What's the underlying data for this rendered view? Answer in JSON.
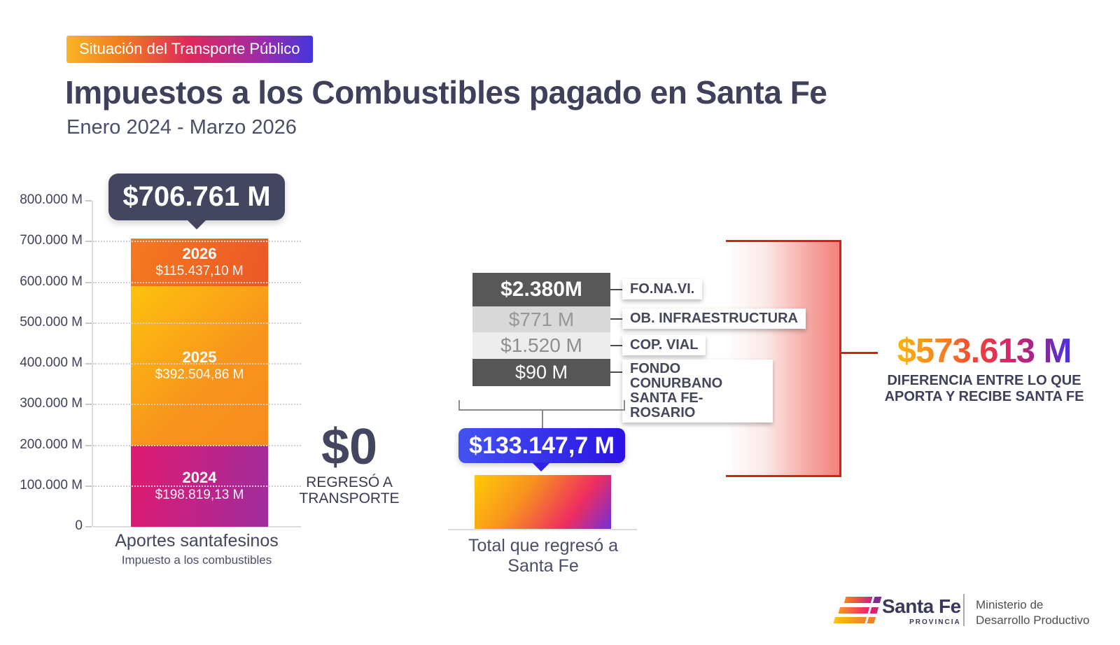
{
  "header": {
    "badge": "Situación del Transporte Público",
    "title": "Impuestos a los Combustibles pagado en Santa Fe",
    "subtitle": "Enero 2024 - Marzo 2026"
  },
  "chart_data": [
    {
      "type": "bar",
      "stacked": true,
      "title": "Aportes santafesinos",
      "subtitle": "Impuesto a los combustibles",
      "total_label": "$706.761 M",
      "total_value": 706761,
      "ylim": [
        0,
        800000
      ],
      "grid": "dotted horizontal",
      "yticks": [
        {
          "label": "800.000 M",
          "value": 800000
        },
        {
          "label": "700.000 M",
          "value": 700000
        },
        {
          "label": "600.000 M",
          "value": 600000
        },
        {
          "label": "500.000 M",
          "value": 500000
        },
        {
          "label": "400.000 M",
          "value": 400000
        },
        {
          "label": "300.000 M",
          "value": 300000
        },
        {
          "label": "200.000 M",
          "value": 200000
        },
        {
          "label": "100.000 M",
          "value": 100000
        },
        {
          "label": "0",
          "value": 0
        }
      ],
      "series": [
        {
          "name": "2026",
          "label": "$115.437,10 M",
          "value": 115437.1
        },
        {
          "name": "2025",
          "label": "$392.504,86 M",
          "value": 392504.86
        },
        {
          "name": "2024",
          "label": "$198.819,13 M",
          "value": 198819.13
        }
      ]
    },
    {
      "type": "bar",
      "title": "Total que regresó a Santa Fe",
      "total_label": "$133.147,7 M",
      "total_value": 133147.7,
      "breakdown": [
        {
          "label": "$2.380M",
          "name": "FO.NA.VI."
        },
        {
          "label": "$771 M",
          "name": "OB. INFRAESTRUCTURA"
        },
        {
          "label": "$1.520 M",
          "name": "COP. VIAL"
        },
        {
          "label": "$90 M",
          "name": "FONDO CONURBANO SANTA FE-ROSARIO"
        }
      ]
    }
  ],
  "zero_callout": {
    "value": "$0",
    "line1": "REGRESÓ A",
    "line2": "TRANSPORTE"
  },
  "difference": {
    "value": "$573.613 M",
    "line1": "DIFERENCIA ENTRE LO QUE",
    "line2": "APORTA Y RECIBE SANTA FE"
  },
  "footer": {
    "brand": "Santa Fe",
    "brand_sub": "PROVINCIA",
    "ministry_line1": "Ministerio de",
    "ministry_line2": "Desarrollo Productivo"
  },
  "colors": {
    "badge_dark": "#43465E",
    "blue_badge": "#2B13E5",
    "accent_red": "#D6201E"
  }
}
